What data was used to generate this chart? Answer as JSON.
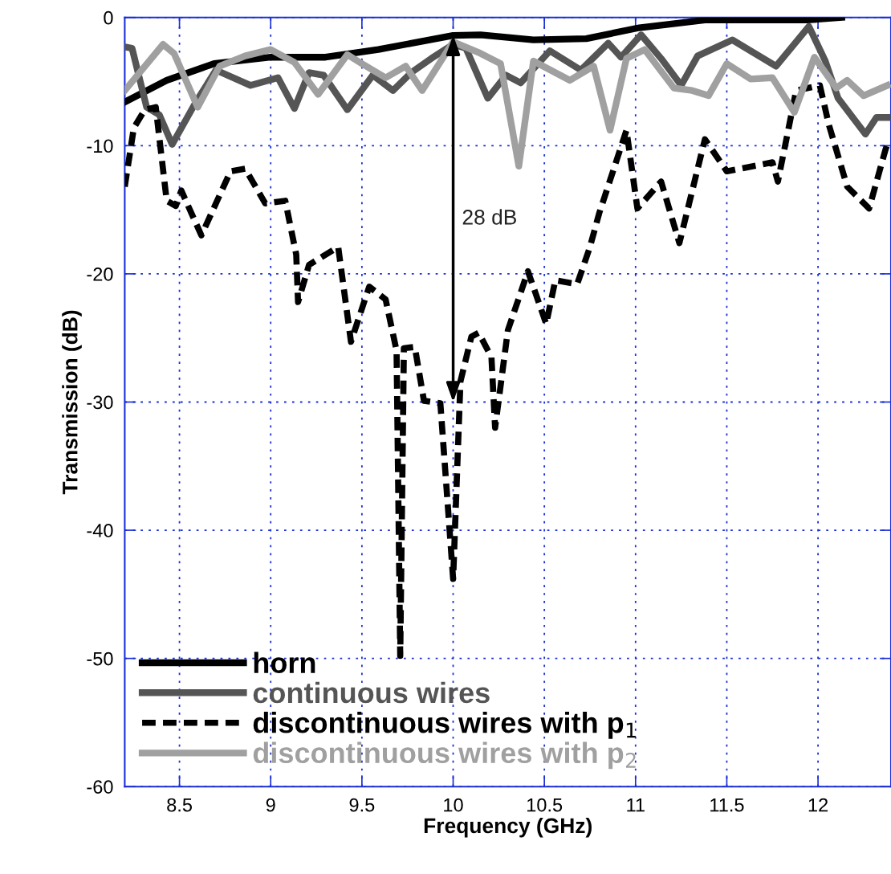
{
  "chart_data": {
    "type": "line",
    "xlabel": "Frequency (GHz)",
    "ylabel": "Transmission (dB)",
    "xlim": [
      8.2,
      12.4
    ],
    "ylim": [
      -60,
      0
    ],
    "xticks": [
      8.5,
      9,
      9.5,
      10,
      10.5,
      11,
      11.5,
      12
    ],
    "yticks": [
      -60,
      -50,
      -40,
      -30,
      -20,
      -10,
      0
    ],
    "grid": true,
    "legend": "bottom left",
    "line_style": "solid",
    "annotations": [
      "28 dB"
    ],
    "series": [
      {
        "name": "horn",
        "color": "#000000",
        "x": [
          8.2,
          8.43,
          8.69,
          9.0,
          9.3,
          9.59,
          10.0,
          10.15,
          10.44,
          10.73,
          11.02,
          11.38,
          11.94,
          12.13
        ],
        "values": [
          -6.6,
          -4.9,
          -3.6,
          -3.1,
          -3.1,
          -2.5,
          -1.4,
          -1.35,
          -1.75,
          -1.65,
          -0.8,
          -0.2,
          -0.2,
          0
        ]
      },
      {
        "name": "continuous wires",
        "color": "#555555",
        "x": [
          8.2,
          8.24,
          8.32,
          8.39,
          8.46,
          8.59,
          8.7,
          8.89,
          9.04,
          9.13,
          9.21,
          9.29,
          9.42,
          9.56,
          9.67,
          9.77,
          9.88,
          10.0,
          10.07,
          10.19,
          10.29,
          10.37,
          10.53,
          10.7,
          10.85,
          10.92,
          11.03,
          11.14,
          11.25,
          11.34,
          11.53,
          11.77,
          11.95,
          12.04,
          12.11,
          12.26,
          12.32,
          12.38
        ],
        "values": [
          -2.3,
          -2.4,
          -7,
          -7.6,
          -9.9,
          -6.6,
          -4.1,
          -5.3,
          -4.7,
          -7.1,
          -4.3,
          -4.5,
          -7.2,
          -4.5,
          -5.7,
          -4.3,
          -3.2,
          -2.1,
          -2.4,
          -6.3,
          -4.5,
          -5.1,
          -2.6,
          -4.1,
          -2.0,
          -3.1,
          -1.35,
          -3.2,
          -5.3,
          -3.0,
          -1.75,
          -3.8,
          -0.7,
          -3.4,
          -6.3,
          -9.1,
          -7.8,
          -7.8
        ]
      },
      {
        "name": "discontinuous wires with p$_{1}$",
        "color": "#000000",
        "line_style": "dashed",
        "x": [
          8.2,
          8.25,
          8.31,
          8.37,
          8.43,
          8.48,
          8.51,
          8.62,
          8.78,
          8.86,
          8.97,
          9.08,
          9.14,
          9.15,
          9.21,
          9.37,
          9.44,
          9.54,
          9.63,
          9.69,
          9.71,
          9.73,
          9.79,
          9.84,
          9.93,
          10.0,
          10.04,
          10.1,
          10.14,
          10.21,
          10.23,
          10.3,
          10.41,
          10.51,
          10.56,
          10.68,
          10.75,
          10.8,
          10.95,
          11.01,
          11.14,
          11.24,
          11.38,
          11.5,
          11.75,
          11.78,
          11.88,
          12.01,
          12.06,
          12.16,
          12.28,
          12.37,
          12.38
        ],
        "values": [
          -13.2,
          -8.6,
          -7.2,
          -7,
          -14.3,
          -14.7,
          -13.5,
          -17,
          -12,
          -11.8,
          -14.5,
          -14.3,
          -18.5,
          -22.2,
          -19.3,
          -17.9,
          -25.3,
          -21,
          -22,
          -26,
          -49.8,
          -25.8,
          -25.7,
          -29.9,
          -30.1,
          -43.8,
          -28.4,
          -24.9,
          -24.6,
          -26.5,
          -32,
          -24.4,
          -19.8,
          -23.9,
          -20.5,
          -20.8,
          -17.9,
          -15.3,
          -8.8,
          -14.9,
          -12.8,
          -17.6,
          -9.5,
          -12,
          -11.3,
          -12.8,
          -5.7,
          -5.3,
          -8.4,
          -13.2,
          -14.9,
          -10.3,
          -9.9
        ]
      },
      {
        "name": "discontinuous wires with p$_{2}$",
        "color": "#a0a0a0",
        "x": [
          8.2,
          8.41,
          8.47,
          8.6,
          8.72,
          8.86,
          9.0,
          9.13,
          9.26,
          9.42,
          9.5,
          9.63,
          9.74,
          9.83,
          10.0,
          10.15,
          10.26,
          10.36,
          10.44,
          10.64,
          10.77,
          10.86,
          10.95,
          11.05,
          11.21,
          11.31,
          11.4,
          11.5,
          11.63,
          11.75,
          11.87,
          11.98,
          12.1,
          12.16,
          12.25,
          12.38
        ],
        "values": [
          -5.7,
          -2.1,
          -2.8,
          -7,
          -3.8,
          -3.0,
          -2.5,
          -3.5,
          -6.0,
          -2.9,
          -3.6,
          -4.7,
          -3.8,
          -5.7,
          -1.9,
          -2.8,
          -3.6,
          -11.6,
          -3.4,
          -4.9,
          -3.8,
          -8.8,
          -3.2,
          -2.5,
          -5.5,
          -5.7,
          -6.1,
          -3.6,
          -4.8,
          -4.7,
          -7.4,
          -3.1,
          -5.5,
          -4.9,
          -6.1,
          -5.3
        ]
      }
    ]
  }
}
